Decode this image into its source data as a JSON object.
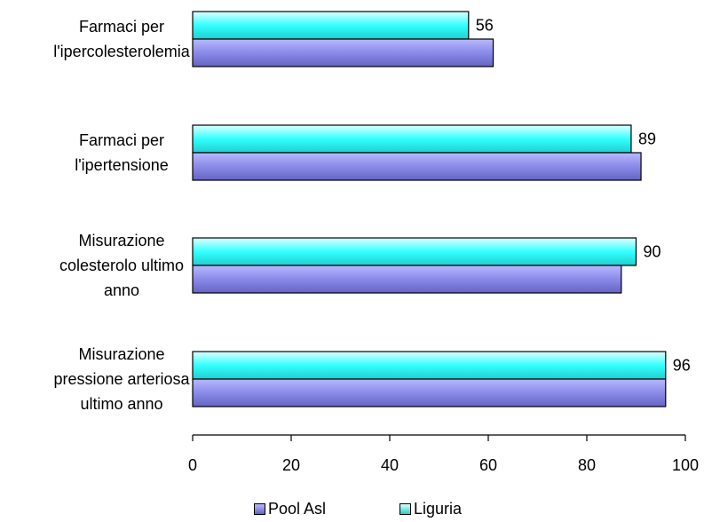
{
  "chart_data": {
    "type": "bar",
    "orientation": "horizontal",
    "categories": [
      [
        "Farmaci per",
        "l'ipercolesterolemia"
      ],
      [
        "Farmaci per",
        "l'ipertensione"
      ],
      [
        "Misurazione",
        "colesterolo ultimo",
        "anno"
      ],
      [
        "Misurazione",
        "pressione arteriosa",
        "ultimo anno"
      ]
    ],
    "series": [
      {
        "name": "Liguria",
        "values": [
          56,
          89,
          90,
          96
        ],
        "color": "#33ffff",
        "data_labels": [
          "56",
          "89",
          "90",
          "96"
        ]
      },
      {
        "name": "Pool Asl",
        "values": [
          61,
          91,
          87,
          96
        ],
        "color": "#9999ff"
      }
    ],
    "xlim": [
      0,
      100
    ],
    "xticks": [
      "0",
      "20",
      "40",
      "60",
      "80",
      "100"
    ],
    "grid": false,
    "legend_position": "bottom"
  }
}
